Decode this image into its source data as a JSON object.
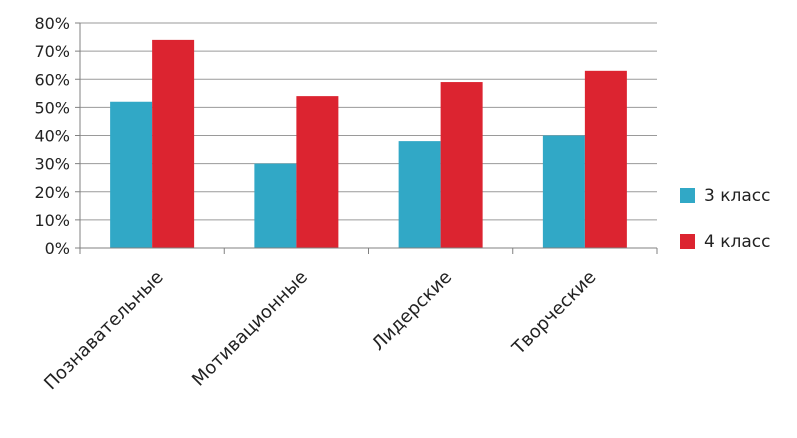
{
  "chart_data": {
    "type": "bar",
    "categories": [
      "Познавательные",
      "Мотивационные",
      "Лидерские",
      "Творческие"
    ],
    "series": [
      {
        "name": "3 класс",
        "values": [
          52,
          30,
          38,
          40
        ],
        "color": "#31a8c6"
      },
      {
        "name": "4 класс",
        "values": [
          74,
          54,
          59,
          63
        ],
        "color": "#dc2430"
      }
    ],
    "y_ticks": [
      "0%",
      "10%",
      "20%",
      "30%",
      "40%",
      "50%",
      "60%",
      "70%",
      "80%"
    ],
    "ylim": [
      0,
      80
    ],
    "grid": true,
    "legend_position": "right",
    "title": "",
    "xlabel": "",
    "ylabel": ""
  }
}
